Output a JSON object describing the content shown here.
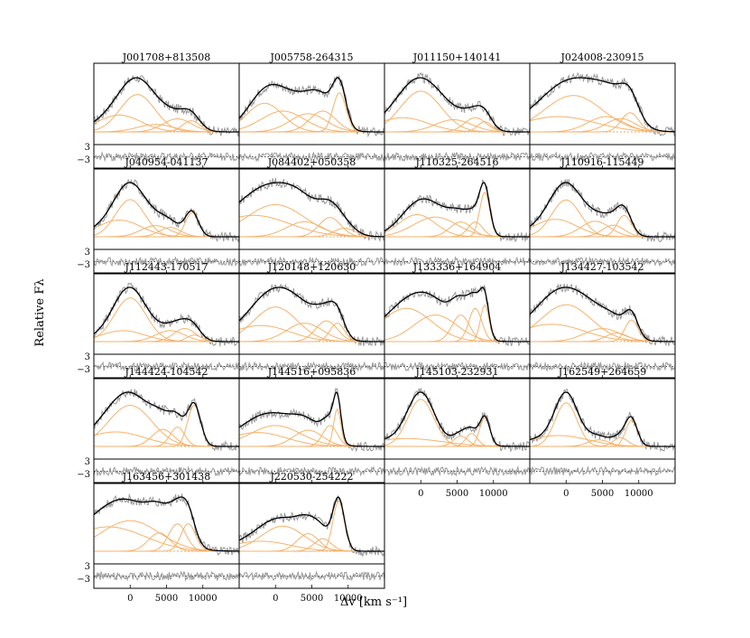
{
  "chart_data": {
    "type": "line",
    "ylabel": "Relative Fλ",
    "xlabel": "Δv [km s⁻¹]",
    "xlim": [
      -5000,
      15000
    ],
    "xticks": [
      0,
      5000,
      10000
    ],
    "xtick_labels": [
      "0",
      "5000",
      "10000"
    ],
    "residual_ticks": [
      "3",
      "−3"
    ],
    "colors": {
      "data": "#999999",
      "model": "#000000",
      "components": "#f6b26b",
      "zero": "#e69138"
    },
    "panels": [
      {
        "name": "J001708+813508",
        "lines": [
          [
            1000,
            2400,
            1.0
          ],
          [
            -1500,
            3000,
            0.45
          ],
          [
            6500,
            2000,
            0.35
          ],
          [
            8400,
            1200,
            0.3
          ],
          [
            3500,
            2500,
            0.2
          ]
        ]
      },
      {
        "name": "J005758-264315",
        "lines": [
          [
            -1500,
            2500,
            0.55
          ],
          [
            1000,
            3000,
            0.4
          ],
          [
            4500,
            2500,
            0.35
          ],
          [
            6500,
            1800,
            0.4
          ],
          [
            8800,
            900,
            0.75
          ]
        ]
      },
      {
        "name": "J011150+140141",
        "lines": [
          [
            0,
            2800,
            1.0
          ],
          [
            -2500,
            3500,
            0.35
          ],
          [
            4500,
            2500,
            0.3
          ],
          [
            7500,
            1500,
            0.35
          ],
          [
            8800,
            1000,
            0.25
          ]
        ]
      },
      {
        "name": "J024008-230915",
        "lines": [
          [
            1000,
            4000,
            0.95
          ],
          [
            -1000,
            5000,
            0.4
          ],
          [
            5500,
            2500,
            0.4
          ],
          [
            7500,
            2000,
            0.35
          ],
          [
            8800,
            1200,
            0.5
          ]
        ]
      },
      {
        "name": "J040954-041137",
        "lines": [
          [
            0,
            2000,
            1.0
          ],
          [
            -1500,
            3000,
            0.45
          ],
          [
            3500,
            2000,
            0.3
          ],
          [
            5500,
            1500,
            0.25
          ],
          [
            8500,
            900,
            0.65
          ]
        ]
      },
      {
        "name": "J084402+050358",
        "lines": [
          [
            0,
            4000,
            0.75
          ],
          [
            -3000,
            5000,
            0.5
          ],
          [
            4000,
            2500,
            0.35
          ],
          [
            7500,
            1500,
            0.45
          ],
          [
            9500,
            1500,
            0.2
          ]
        ]
      },
      {
        "name": "J110325-264516",
        "lines": [
          [
            -500,
            2500,
            0.45
          ],
          [
            2000,
            3000,
            0.4
          ],
          [
            5500,
            1500,
            0.3
          ],
          [
            7500,
            1000,
            0.3
          ],
          [
            8800,
            700,
            0.9
          ]
        ]
      },
      {
        "name": "J110916-115449",
        "lines": [
          [
            0,
            2000,
            0.95
          ],
          [
            -1500,
            3000,
            0.45
          ],
          [
            4000,
            2000,
            0.4
          ],
          [
            6500,
            1500,
            0.3
          ],
          [
            8000,
            1000,
            0.55
          ]
        ]
      },
      {
        "name": "J112443-170517",
        "lines": [
          [
            0,
            2200,
            1.0
          ],
          [
            -1000,
            3000,
            0.25
          ],
          [
            5500,
            2000,
            0.25
          ],
          [
            7500,
            1500,
            0.3
          ],
          [
            8800,
            1000,
            0.15
          ]
        ]
      },
      {
        "name": "J120148+120630",
        "lines": [
          [
            0,
            3000,
            0.75
          ],
          [
            -2000,
            4000,
            0.35
          ],
          [
            4000,
            2500,
            0.4
          ],
          [
            7000,
            1500,
            0.45
          ],
          [
            8500,
            1000,
            0.4
          ]
        ]
      },
      {
        "name": "J133336+164904",
        "lines": [
          [
            -2000,
            3500,
            0.5
          ],
          [
            2000,
            3000,
            0.4
          ],
          [
            5500,
            1200,
            0.4
          ],
          [
            7500,
            900,
            0.5
          ],
          [
            8800,
            600,
            0.55
          ]
        ]
      },
      {
        "name": "J134427-103542",
        "lines": [
          [
            0,
            3500,
            0.85
          ],
          [
            -2000,
            4500,
            0.4
          ],
          [
            5000,
            2500,
            0.3
          ],
          [
            7000,
            1500,
            0.2
          ],
          [
            9000,
            900,
            0.5
          ]
        ]
      },
      {
        "name": "J144424-104542",
        "lines": [
          [
            0,
            3000,
            0.85
          ],
          [
            -2000,
            4000,
            0.3
          ],
          [
            4500,
            1500,
            0.35
          ],
          [
            6500,
            1000,
            0.4
          ],
          [
            8800,
            900,
            0.85
          ]
        ]
      },
      {
        "name": "J144516+095836",
        "lines": [
          [
            0,
            3500,
            0.45
          ],
          [
            -2500,
            4000,
            0.3
          ],
          [
            4500,
            2000,
            0.35
          ],
          [
            7500,
            1000,
            0.45
          ],
          [
            8500,
            500,
            0.8
          ]
        ]
      },
      {
        "name": "J145103-232931",
        "lines": [
          [
            0,
            1800,
            0.9
          ],
          [
            -2000,
            5000,
            0.15
          ],
          [
            5500,
            1000,
            0.2
          ],
          [
            7000,
            800,
            0.25
          ],
          [
            8800,
            700,
            0.55
          ]
        ]
      },
      {
        "name": "J162549+264659",
        "lines": [
          [
            0,
            1500,
            1.0
          ],
          [
            -1000,
            4000,
            0.25
          ],
          [
            4500,
            1500,
            0.15
          ],
          [
            7500,
            1000,
            0.2
          ],
          [
            9000,
            800,
            0.6
          ]
        ]
      },
      {
        "name": "J163456+301438",
        "lines": [
          [
            0,
            4000,
            0.5
          ],
          [
            -3000,
            5000,
            0.4
          ],
          [
            4000,
            1500,
            0.3
          ],
          [
            6500,
            1200,
            0.45
          ],
          [
            8000,
            1000,
            0.45
          ]
        ]
      },
      {
        "name": "J220530-254222",
        "lines": [
          [
            1000,
            3000,
            0.5
          ],
          [
            -2000,
            4000,
            0.2
          ],
          [
            4500,
            1500,
            0.35
          ],
          [
            6500,
            1200,
            0.25
          ],
          [
            8700,
            800,
            1.0
          ]
        ]
      }
    ]
  }
}
